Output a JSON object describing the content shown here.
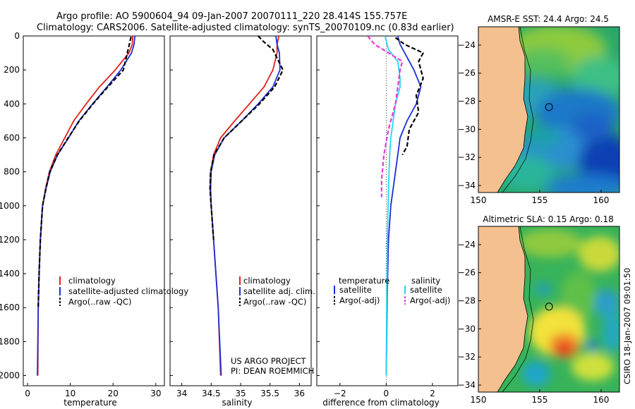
{
  "header": {
    "title_line1": "Argo profile: AO 5900604_94 09-Jan-2007 20070111_220 28.414S 155.757E",
    "title_line2": "Climatology: CARS2006. Satellite-adjusted climatology: synTS_20070109.nc (0.83d earlier)"
  },
  "colors": {
    "climatology": "#e0201b",
    "satellite": "#1a2fd6",
    "argo": "#000000",
    "satellite_salinity": "#22d8f0",
    "argo_salinity": "#e63ad6",
    "land": "#f5c08f"
  },
  "footer": {
    "project": "US ARGO PROJECT",
    "pi": "PI: DEAN ROEMMICH",
    "credit": "CSIRO 18-Jan-2007 09:01:50"
  },
  "chart_data": [
    {
      "id": "temperature",
      "type": "line",
      "xlabel": "temperature",
      "ylabel": "",
      "xlim": [
        -1,
        32
      ],
      "ylim": [
        2060,
        0
      ],
      "xticks": [
        0,
        10,
        20,
        30
      ],
      "yticks": [
        0,
        200,
        400,
        600,
        800,
        1000,
        1200,
        1400,
        1600,
        1800,
        2000
      ],
      "legend_position": "lower-right",
      "series": [
        {
          "name": "climatology",
          "color": "#e0201b",
          "dash": "",
          "x": [
            24.6,
            24.5,
            23.7,
            20.5,
            16.8,
            13.7,
            10.8,
            8.7,
            6.6,
            5.1,
            4.2,
            3.5,
            3.0,
            2.7,
            2.5,
            2.4
          ],
          "y": [
            0,
            50,
            100,
            200,
            300,
            400,
            500,
            600,
            700,
            800,
            900,
            1000,
            1200,
            1400,
            1600,
            2000
          ]
        },
        {
          "name": "satellite-adjusted climatology",
          "color": "#1a2fd6",
          "dash": "",
          "x": [
            25.1,
            24.9,
            24.3,
            21.8,
            18.6,
            15.2,
            12.0,
            9.6,
            7.0,
            5.3,
            4.3,
            3.5,
            3.0,
            2.7,
            2.5,
            2.3
          ],
          "y": [
            0,
            50,
            100,
            200,
            300,
            400,
            500,
            600,
            700,
            800,
            900,
            1000,
            1200,
            1400,
            1600,
            2000
          ]
        },
        {
          "name": "Argo(..raw -QC)",
          "color": "#000000",
          "dash": "6,3",
          "x": [
            24.2,
            24.0,
            23.6,
            22.4,
            18.8,
            15.3,
            12.1,
            9.5,
            7.0,
            5.2,
            4.3,
            3.5,
            3.0,
            2.7,
            2.5
          ],
          "y": [
            5,
            30,
            70,
            200,
            300,
            400,
            500,
            600,
            700,
            800,
            900,
            1000,
            1200,
            1400,
            1600
          ]
        }
      ]
    },
    {
      "id": "salinity",
      "type": "line",
      "xlabel": "salinity",
      "ylabel": "",
      "xlim": [
        33.8,
        36.2
      ],
      "ylim": [
        2060,
        0
      ],
      "xticks": [
        34,
        34.5,
        35,
        35.5,
        36
      ],
      "legend_position": "lower-right",
      "series": [
        {
          "name": "climatology",
          "color": "#e0201b",
          "dash": "",
          "x": [
            35.65,
            35.62,
            35.62,
            35.55,
            35.4,
            35.15,
            34.9,
            34.66,
            34.54,
            34.49,
            34.48,
            34.5,
            34.54,
            34.58,
            34.62,
            34.66
          ],
          "y": [
            0,
            50,
            100,
            200,
            300,
            400,
            500,
            600,
            700,
            800,
            900,
            1000,
            1200,
            1400,
            1600,
            2000
          ]
        },
        {
          "name": "satellite adj. clim.",
          "color": "#1a2fd6",
          "dash": "",
          "x": [
            35.6,
            35.62,
            35.66,
            35.67,
            35.55,
            35.3,
            35.02,
            34.72,
            34.56,
            34.5,
            34.49,
            34.5,
            34.54,
            34.58,
            34.62,
            34.67
          ],
          "y": [
            0,
            50,
            100,
            200,
            300,
            400,
            500,
            600,
            700,
            800,
            900,
            1000,
            1200,
            1400,
            1600,
            2000
          ]
        },
        {
          "name": "Argo(..raw -QC)",
          "color": "#000000",
          "dash": "6,3",
          "x": [
            35.3,
            35.38,
            35.55,
            35.72,
            35.58,
            35.32,
            35.02,
            34.72,
            34.55,
            34.49,
            34.48,
            34.5,
            34.54
          ],
          "y": [
            0,
            30,
            80,
            200,
            300,
            400,
            500,
            600,
            700,
            800,
            900,
            1000,
            1200
          ]
        }
      ]
    },
    {
      "id": "difference",
      "type": "line",
      "xlabel": "difference from climatology",
      "ylabel": "",
      "xlim": [
        -3,
        3.1
      ],
      "ylim": [
        2060,
        0
      ],
      "xticks": [
        -2,
        0,
        2
      ],
      "legend_position": "lower-right",
      "legend_headers": [
        "temperature",
        "salinity"
      ],
      "series": [
        {
          "name": "satellite",
          "group": "temperature",
          "color": "#1a2fd6",
          "dash": "",
          "x": [
            0.5,
            0.6,
            0.8,
            1.2,
            1.5,
            1.3,
            0.9,
            0.6,
            0.5,
            0.4,
            0.3,
            0.2,
            0.1,
            0.05,
            0.0
          ],
          "y": [
            0,
            50,
            100,
            200,
            300,
            400,
            500,
            600,
            700,
            800,
            900,
            1000,
            1200,
            1500,
            2000
          ]
        },
        {
          "name": "Argo(-adj)",
          "group": "temperature",
          "color": "#000000",
          "dash": "6,3",
          "x": [
            0.4,
            0.8,
            1.6,
            1.4,
            1.6,
            1.3,
            1.4,
            1.0,
            0.9,
            0.7
          ],
          "y": [
            10,
            50,
            100,
            150,
            250,
            350,
            450,
            550,
            650,
            700
          ]
        },
        {
          "name": "satellite",
          "group": "salinity",
          "color": "#22d8f0",
          "dash": "",
          "x": [
            -0.05,
            0.1,
            0.5,
            0.6,
            0.6,
            0.4,
            0.3,
            0.2,
            0.15,
            0.1,
            0.05,
            0.0
          ],
          "y": [
            0,
            80,
            150,
            250,
            300,
            400,
            500,
            600,
            700,
            900,
            1200,
            2000
          ]
        },
        {
          "name": "Argo(-adj)",
          "group": "salinity",
          "color": "#e63ad6",
          "dash": "6,3",
          "x": [
            -0.8,
            -0.5,
            0.7,
            0.6,
            0.5,
            0.4,
            0.1,
            -0.1,
            -0.2,
            -0.2
          ],
          "y": [
            0,
            50,
            150,
            200,
            300,
            400,
            550,
            700,
            850,
            950
          ]
        }
      ]
    },
    {
      "id": "sst_map",
      "type": "heatmap",
      "title": "AMSR-E SST: 24.4 Argo: 24.5",
      "xlim": [
        150,
        161.5
      ],
      "ylim": [
        -34.5,
        -22.7
      ],
      "xticks": [
        150,
        155,
        160
      ],
      "yticks": [
        -24,
        -26,
        -28,
        -30,
        -32,
        -34
      ],
      "marker": {
        "lon": 155.757,
        "lat": -28.414
      }
    },
    {
      "id": "sla_map",
      "type": "heatmap",
      "title": "Altimetric SLA: 0.15 Argo: 0.18",
      "xlim": [
        150,
        161.5
      ],
      "ylim": [
        -34.5,
        -22.7
      ],
      "xticks": [
        150,
        155,
        160
      ],
      "yticks": [
        -24,
        -26,
        -28,
        -30,
        -32,
        -34
      ],
      "marker": {
        "lon": 155.757,
        "lat": -28.414
      }
    }
  ]
}
